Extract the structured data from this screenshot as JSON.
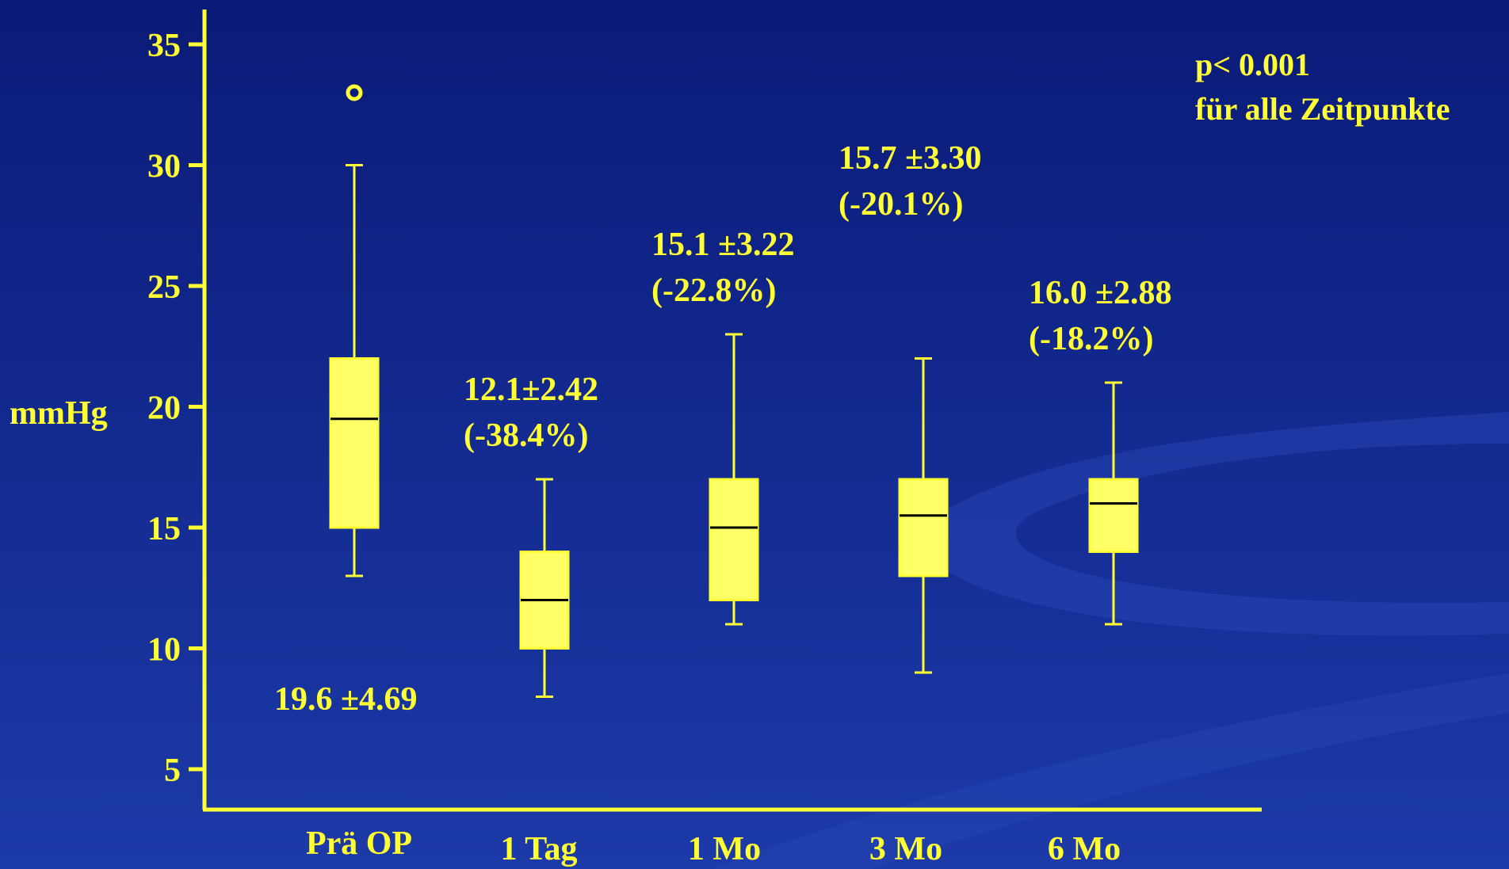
{
  "colors": {
    "background_top": "#0a1a78",
    "background_bottom": "#1c3aa8",
    "axis": "#ffff33",
    "box_fill": "#ffff66",
    "median": "#000000",
    "text": "#ffff33"
  },
  "chart_data": {
    "type": "boxplot",
    "ylabel": "mmHg",
    "yticks": [
      5,
      10,
      15,
      20,
      25,
      30,
      35
    ],
    "ylim": [
      3,
      37
    ],
    "categories": [
      "Prä OP",
      "1 Tag",
      "1 Mo",
      "3 Mo",
      "6 Mo"
    ],
    "boxes": [
      {
        "category": "Prä OP",
        "whisker_low": 13,
        "q1": 15,
        "median": 19.5,
        "q3": 22,
        "whisker_high": 30,
        "outliers": [
          33
        ],
        "stat_line1": "19.6 ±4.69",
        "stat_line2": ""
      },
      {
        "category": "1 Tag",
        "whisker_low": 8,
        "q1": 10,
        "median": 12,
        "q3": 14,
        "whisker_high": 17,
        "outliers": [],
        "stat_line1": "12.1±2.42",
        "stat_line2": "(-38.4%)"
      },
      {
        "category": "1 Mo",
        "whisker_low": 11,
        "q1": 12,
        "median": 15,
        "q3": 17,
        "whisker_high": 23,
        "outliers": [],
        "stat_line1": "15.1 ±3.22",
        "stat_line2": "(-22.8%)"
      },
      {
        "category": "3 Mo",
        "whisker_low": 9,
        "q1": 13,
        "median": 15.5,
        "q3": 17,
        "whisker_high": 22,
        "outliers": [],
        "stat_line1": "15.7 ±3.30",
        "stat_line2": "(-20.1%)"
      },
      {
        "category": "6 Mo",
        "whisker_low": 11,
        "q1": 14,
        "median": 16,
        "q3": 17,
        "whisker_high": 21,
        "outliers": [],
        "stat_line1": "16.0 ±2.88",
        "stat_line2": "(-18.2%)"
      }
    ],
    "annotation_line1": "p< 0.001",
    "annotation_line2": "für alle Zeitpunkte"
  }
}
